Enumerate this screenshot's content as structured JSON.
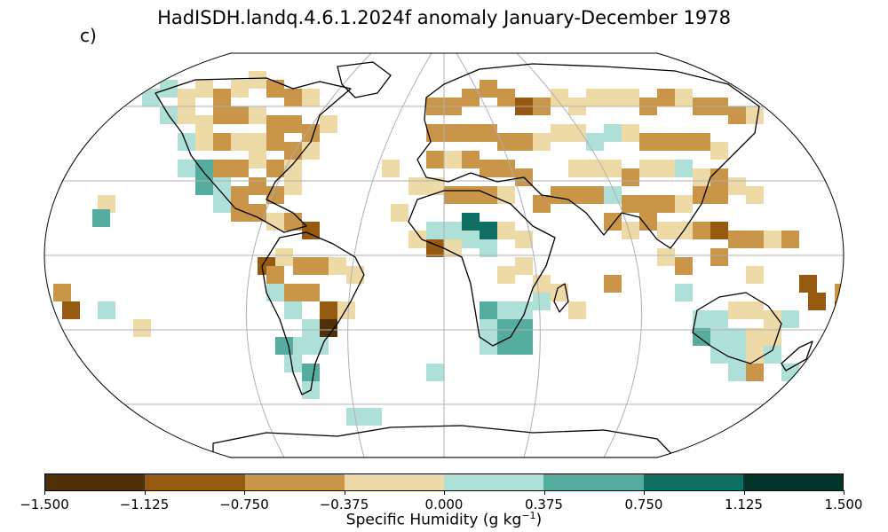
{
  "title": "HadISDH.landq.4.6.1.2024f anomaly January-December 1978",
  "panel_label": "c)",
  "colorbar": {
    "label_prefix": "Specific Humidity (g kg",
    "label_exp": "−1",
    "label_suffix": ")",
    "ticks": [
      "−1.500",
      "−1.125",
      "−0.750",
      "−0.375",
      "0.000",
      "0.375",
      "0.750",
      "1.125",
      "1.500"
    ],
    "colors": [
      "#4f3009",
      "#955a10",
      "#c99548",
      "#eedaa6",
      "#aee0d8",
      "#55ad9f",
      "#0e6f62",
      "#033429"
    ]
  },
  "map_data": {
    "projection": "robinson",
    "graticule": "30deg",
    "levels": [
      -1.5,
      -1.125,
      -0.75,
      -0.375,
      0.0,
      0.375,
      0.75,
      1.125,
      1.5
    ]
  }
}
